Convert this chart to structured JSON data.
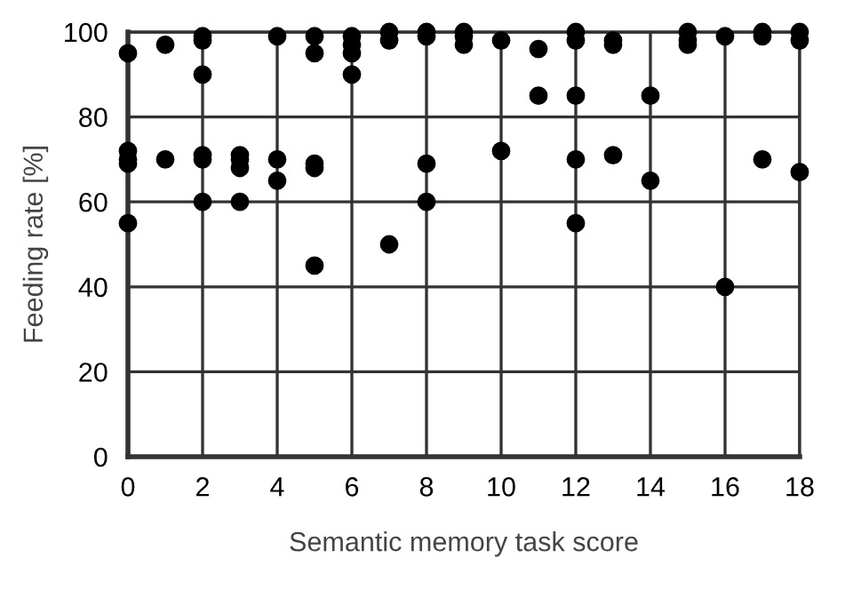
{
  "chart_data": {
    "type": "scatter",
    "xlabel": "Semantic memory task score",
    "ylabel": "Feeding rate [%]",
    "xlim": [
      0,
      18
    ],
    "xticks": [
      0,
      2,
      4,
      6,
      8,
      10,
      12,
      14,
      16,
      18
    ],
    "ylim": [
      0,
      100
    ],
    "yticks": [
      0,
      20,
      40,
      60,
      80,
      100
    ],
    "grid": true,
    "marker": "circle",
    "series": [
      {
        "color": "#000000",
        "x": [
          0,
          0,
          0,
          0,
          0,
          1,
          1,
          2,
          2,
          2,
          2,
          2,
          2,
          3,
          3,
          3,
          3,
          4,
          4,
          4,
          5,
          5,
          5,
          5,
          5,
          6,
          6,
          6,
          6,
          7,
          7,
          7,
          8,
          8,
          8,
          8,
          9,
          9,
          9,
          10,
          10,
          11,
          11,
          12,
          12,
          12,
          12,
          12,
          13,
          13,
          13,
          14,
          14,
          15,
          15,
          15,
          16,
          16,
          17,
          17,
          17,
          18,
          18,
          18
        ],
        "values": [
          95,
          72,
          70,
          69,
          55,
          97,
          70,
          99,
          98,
          90,
          71,
          70,
          60,
          71,
          70,
          68,
          60,
          99,
          70,
          65,
          99,
          95,
          69,
          68,
          45,
          99,
          97,
          95,
          90,
          100,
          98,
          50,
          100,
          99,
          69,
          60,
          100,
          99,
          97,
          98,
          72,
          96,
          85,
          100,
          98,
          85,
          70,
          55,
          98,
          97,
          71,
          85,
          65,
          100,
          98,
          97,
          99,
          40,
          100,
          99,
          70,
          100,
          98,
          67
        ]
      }
    ]
  }
}
